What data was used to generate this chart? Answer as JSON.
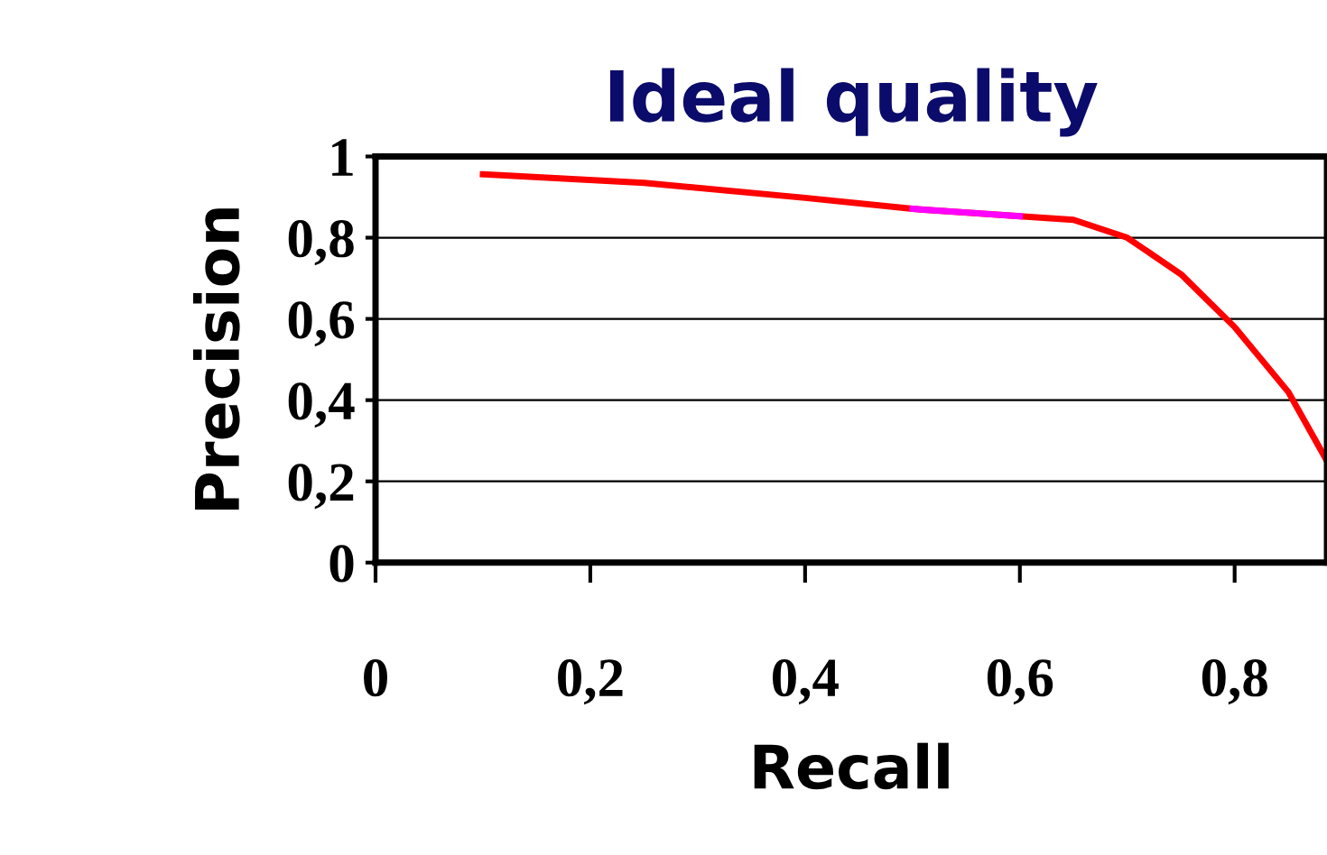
{
  "chart_data": {
    "type": "line",
    "title": "Ideal quality",
    "xlabel": "Recall",
    "ylabel": "Precision",
    "xlim": [
      0,
      0.886
    ],
    "ylim": [
      0,
      1
    ],
    "xticks": [
      {
        "value": 0,
        "label": "0"
      },
      {
        "value": 0.2,
        "label": "0,2"
      },
      {
        "value": 0.4,
        "label": "0,4"
      },
      {
        "value": 0.6,
        "label": "0,6"
      },
      {
        "value": 0.8,
        "label": "0,8"
      }
    ],
    "yticks": [
      {
        "value": 0,
        "label": "0"
      },
      {
        "value": 0.2,
        "label": "0,2"
      },
      {
        "value": 0.4,
        "label": "0,4"
      },
      {
        "value": 0.6,
        "label": "0,6"
      },
      {
        "value": 0.8,
        "label": "0,8"
      },
      {
        "value": 1,
        "label": "1"
      }
    ],
    "grid": "y",
    "legend": false,
    "marker": "none",
    "line_style": "solid",
    "series": [
      {
        "color": "#ff0000",
        "x": [
          0.1,
          0.25,
          0.4,
          0.5,
          0.6,
          0.65,
          0.7,
          0.75,
          0.8,
          0.85,
          0.886
        ],
        "values": [
          0.956,
          0.935,
          0.898,
          0.871,
          0.853,
          0.844,
          0.8,
          0.71,
          0.58,
          0.42,
          0.25
        ]
      },
      {
        "color": "#ff00ff",
        "x": [
          0.5,
          0.55,
          0.6
        ],
        "values": [
          0.871,
          0.862,
          0.853
        ]
      }
    ]
  }
}
